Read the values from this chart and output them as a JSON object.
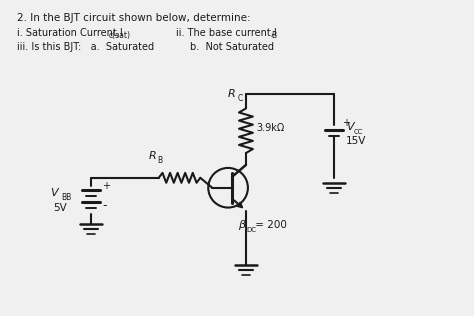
{
  "bg_color": "#f0f0f0",
  "line_color": "#1a1a1a",
  "text_color": "#1a1a1a",
  "title": "2. In the BJT circuit shown below, determine:",
  "sub1_left": "i. Saturation Current,I",
  "sub1_left_sub": "c(sat)",
  "sub1_right": "ii. The base current,I",
  "sub1_right_sub": "B",
  "sub2_left": "iii. Is this BJT:   a.  Saturated",
  "sub2_right": "b.  Not Saturated",
  "rc_value": "3.9kΩ",
  "vcc_value": "15V",
  "vbb_value": "5V",
  "beta_value": " = 200"
}
